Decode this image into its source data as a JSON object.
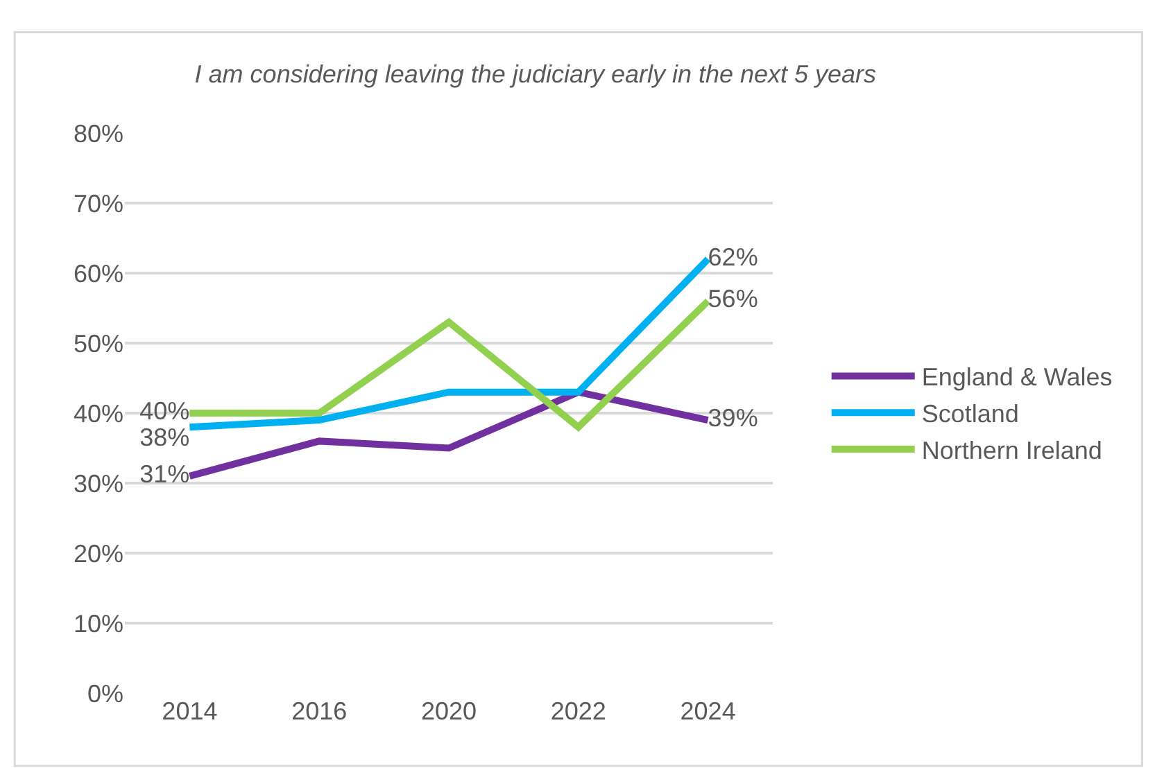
{
  "chart_data": {
    "type": "line",
    "title": "I am considering leaving the judiciary early in the next 5 years",
    "categories": [
      "2014",
      "2016",
      "2020",
      "2022",
      "2024"
    ],
    "series": [
      {
        "name": "England & Wales",
        "color": "#7030a0",
        "values": [
          31,
          36,
          35,
          43,
          39
        ],
        "value_labels": [
          "31%",
          null,
          null,
          null,
          "39%"
        ]
      },
      {
        "name": "Scotland",
        "color": "#00b0f0",
        "values": [
          38,
          39,
          43,
          43,
          62
        ],
        "value_labels": [
          "38%",
          null,
          null,
          null,
          "62%"
        ]
      },
      {
        "name": "Northern Ireland",
        "color": "#92d050",
        "values": [
          40,
          40,
          53,
          38,
          56
        ],
        "value_labels": [
          "40%",
          null,
          null,
          null,
          "56%"
        ]
      }
    ],
    "ylim": [
      0,
      80
    ],
    "yticks": [
      {
        "value": 0,
        "label": "0%"
      },
      {
        "value": 10,
        "label": "10%"
      },
      {
        "value": 20,
        "label": "20%"
      },
      {
        "value": 30,
        "label": "30%"
      },
      {
        "value": 40,
        "label": "40%"
      },
      {
        "value": 50,
        "label": "50%"
      },
      {
        "value": 60,
        "label": "60%"
      },
      {
        "value": 70,
        "label": "70%"
      },
      {
        "value": 80,
        "label": "80%"
      }
    ],
    "grid": "y",
    "legend": "right",
    "marker": "none",
    "line_style": "solid"
  }
}
